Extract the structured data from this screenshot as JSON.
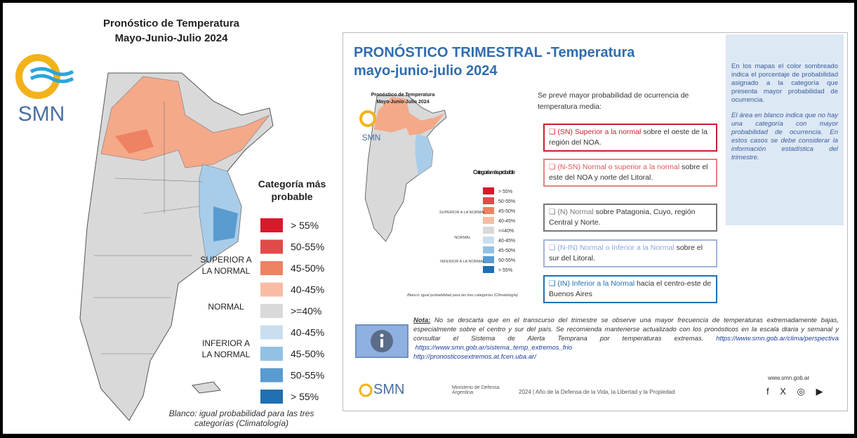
{
  "left": {
    "title": "Pronóstico de Temperatura",
    "subtitle": "Mayo-Junio-Julio 2024",
    "logo": "SMN",
    "legend_title": "Categoría más probable",
    "groups": [
      "SUPERIOR A LA NORMAL",
      "NORMAL",
      "INFERIOR A LA NORMAL"
    ],
    "legend": [
      {
        "label": "> 55%",
        "color": "#d7192b"
      },
      {
        "label": "50-55%",
        "color": "#e24a4a"
      },
      {
        "label": "45-50%",
        "color": "#ee8262"
      },
      {
        "label": "40-45%",
        "color": "#f7bda4"
      },
      {
        "label": ">=40%",
        "color": "#d9d9d9"
      },
      {
        "label": "40-45%",
        "color": "#c9def0"
      },
      {
        "label": "45-50%",
        "color": "#93c1e3"
      },
      {
        "label": "50-55%",
        "color": "#5a9bd0"
      },
      {
        "label": "> 55%",
        "color": "#1f6fb3"
      }
    ],
    "footnote": "Blanco: igual probabilidad para las tres categorías (Climatología)"
  },
  "right": {
    "heading": "PRONÓSTICO TRIMESTRAL -Temperatura",
    "subheading": "mayo-junio-julio 2024",
    "intro": "Se prevé mayor probabilidad de ocurrencia de temperatura media:",
    "boxes": [
      {
        "label": "(SN) Superior a la normal",
        "text": "sobre el oeste de la región del NOA."
      },
      {
        "label": "(N-SN) Normal o superior a la normal",
        "text": "sobre el este del NOA y norte del Litoral."
      },
      {
        "label": "(N) Normal",
        "text": "sobre Patagonia, Cuyo, región Central y Norte."
      },
      {
        "label": "(N-IN) Normal o Inferior a la Normal",
        "text": "sobre el sur del Litoral."
      },
      {
        "label": "(IN) Inferior a la Normal",
        "text": "hacia el centro-este de Buenos Aires"
      }
    ],
    "side_note": [
      "En los mapas el color sombreado indica el porcentaje de probabilidad asignado a la categoría que presenta mayor probabilidad de ocurrencia.",
      "El área en blanco indica que no hay una categoría con mayor probabilidad de ocurrencia. En estos casos se debe considerar la información estadística del trimestre."
    ],
    "note_label": "Nota:",
    "note": "No se descarta que en el transcurso del trimestre se observe una mayor frecuencia de temperaturas extremadamente bajas, especialmente sobre el centro y sur del país. Se recomienda mantenerse actualizado con los pronósticos en la escala diaria y semanal y consultar el Sistema de Alerta Temprana por temperaturas extremas.",
    "links": [
      "https://www.smn.gob.ar/clima/perspectiva",
      "https://www.smn.gob.ar/sistema_temp_extremos_frio",
      "http://pronosticosextremos.at.fcen.uba.ar/"
    ],
    "footer": {
      "logo": "SMN",
      "ministry": "Ministerio de Defensa Argentina",
      "motto": "2024 | Año de la Defensa de la Vida, la Libertad y la Propiedad",
      "site": "www.smn.gob.ar"
    }
  }
}
